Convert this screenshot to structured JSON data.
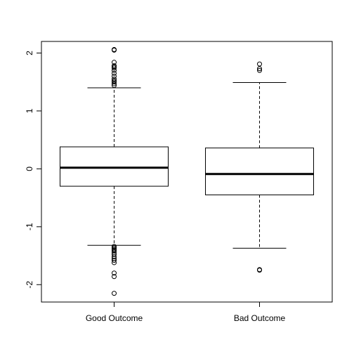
{
  "chart_data": {
    "type": "box",
    "title": "",
    "xlabel": "",
    "ylabel": "",
    "categories": [
      "Good Outcome",
      "Bad Outcome"
    ],
    "ylim": [
      -2.3,
      2.2
    ],
    "yticks": [
      -2,
      -1,
      0,
      1,
      2
    ],
    "ytick_labels": [
      "-2",
      "-1",
      "0",
      "1",
      "2"
    ],
    "grid": false,
    "boxes": [
      {
        "name": "Good Outcome",
        "whisker_low": -1.32,
        "q1": -0.3,
        "median": 0.02,
        "q3": 0.38,
        "whisker_high": 1.4,
        "outliers": [
          2.06,
          2.05,
          1.84,
          1.78,
          1.76,
          1.74,
          1.7,
          1.65,
          1.6,
          1.55,
          1.52,
          1.5,
          1.47,
          1.44,
          -1.34,
          -1.36,
          -1.38,
          -1.4,
          -1.42,
          -1.45,
          -1.48,
          -1.52,
          -1.55,
          -1.58,
          -1.62,
          -1.8,
          -1.86,
          -2.15
        ]
      },
      {
        "name": "Bad Outcome",
        "whisker_low": -1.37,
        "q1": -0.45,
        "median": -0.09,
        "q3": 0.36,
        "whisker_high": 1.49,
        "outliers": [
          1.81,
          1.73,
          1.7,
          -1.74,
          -1.75
        ]
      }
    ]
  }
}
